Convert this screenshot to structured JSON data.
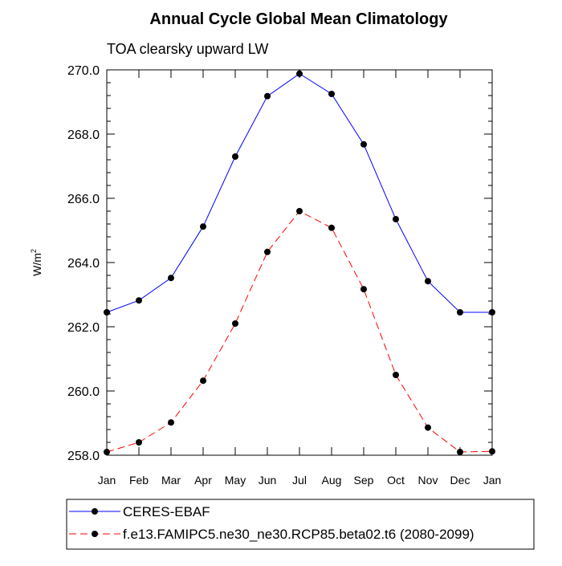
{
  "chart_data": {
    "type": "line",
    "title": "Annual Cycle Global Mean Climatology",
    "subtitle": "TOA clearsky upward LW",
    "xlabel": "",
    "ylabel": "W/m",
    "ylabel_superscript": "2",
    "categories": [
      "Jan",
      "Feb",
      "Mar",
      "Apr",
      "May",
      "Jun",
      "Jul",
      "Aug",
      "Sep",
      "Oct",
      "Nov",
      "Dec",
      "Jan"
    ],
    "ylim": [
      258.0,
      270.0
    ],
    "yticks": [
      "258.0",
      "260.0",
      "262.0",
      "264.0",
      "266.0",
      "268.0",
      "270.0"
    ],
    "grid": false,
    "legend_position": "bottom",
    "series": [
      {
        "name": "CERES-EBAF",
        "color": "#0000ff",
        "line_style": "solid",
        "marker": "filled-circle",
        "values": [
          262.45,
          262.82,
          263.52,
          265.12,
          267.3,
          269.18,
          269.88,
          269.25,
          267.68,
          265.35,
          263.42,
          262.45,
          262.45
        ]
      },
      {
        "name": "f.e13.FAMIPC5.ne30_ne30.RCP85.beta02.t6 (2080-2099)",
        "color": "#ff0000",
        "line_style": "dashed",
        "marker": "filled-circle",
        "values": [
          258.1,
          258.4,
          259.02,
          260.32,
          262.1,
          264.33,
          265.6,
          265.08,
          263.17,
          260.5,
          258.86,
          258.1,
          258.12
        ]
      }
    ]
  }
}
